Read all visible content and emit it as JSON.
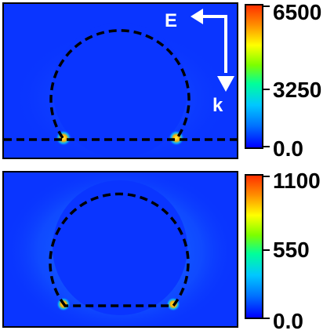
{
  "panels": [
    {
      "id": "top",
      "field_color": "#0a35ff",
      "hotspot_color": "#ffd24a",
      "outline_color": "#000000",
      "colorbar": {
        "max": "6500",
        "mid": "3250",
        "min": "0.0"
      },
      "annotations": {
        "e_label": "E",
        "k_label": "k"
      }
    },
    {
      "id": "bottom",
      "field_color": "#0a35ff",
      "hotspot_color": "#ffd24a",
      "outline_color": "#000000",
      "colorbar": {
        "max": "1100",
        "mid": "550",
        "min": "0.0"
      }
    }
  ],
  "colormap": [
    "#0000ff",
    "#00a0ff",
    "#00e6ff",
    "#00ff80",
    "#80ff00",
    "#ffff00",
    "#ff8000",
    "#ff0000"
  ],
  "arrow_color": "#ffffff"
}
